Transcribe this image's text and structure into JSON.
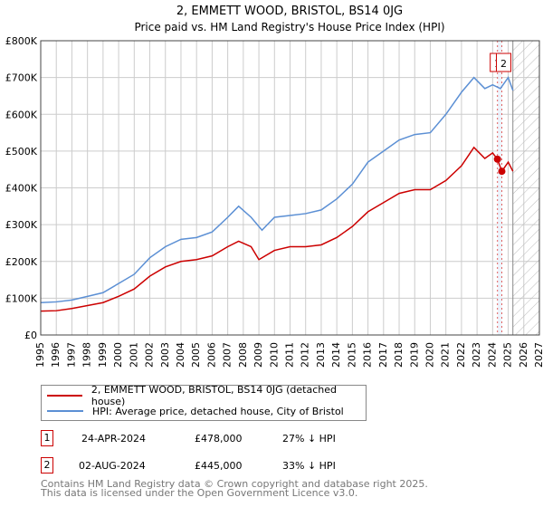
{
  "chart_data": {
    "type": "line",
    "title": "2, EMMETT WOOD, BRISTOL, BS14 0JG",
    "subtitle": "Price paid vs. HM Land Registry's House Price Index (HPI)",
    "xlim": [
      1995,
      2027
    ],
    "ylim": [
      0,
      800000
    ],
    "x_ticks": [
      "1995",
      "1996",
      "1997",
      "1998",
      "1999",
      "2000",
      "2001",
      "2002",
      "2003",
      "2004",
      "2005",
      "2006",
      "2007",
      "2008",
      "2009",
      "2010",
      "2011",
      "2012",
      "2013",
      "2014",
      "2015",
      "2016",
      "2017",
      "2018",
      "2019",
      "2020",
      "2021",
      "2022",
      "2023",
      "2024",
      "2025",
      "2026",
      "2027"
    ],
    "y_ticks": [
      "£0",
      "£100K",
      "£200K",
      "£300K",
      "£400K",
      "£500K",
      "£600K",
      "£700K",
      "£800K"
    ],
    "grid": true,
    "series": [
      {
        "name": "2, EMMETT WOOD, BRISTOL, BS14 0JG (detached house)",
        "color": "#cc0000",
        "x": [
          1995,
          1996,
          1997,
          1998,
          1999,
          2000,
          2001,
          2002,
          2003,
          2004,
          2005,
          2006,
          2007,
          2007.7,
          2008.5,
          2009,
          2010,
          2011,
          2012,
          2013,
          2014,
          2015,
          2016,
          2017,
          2018,
          2019,
          2020,
          2021,
          2022,
          2022.8,
          2023.5,
          2024,
          2024.31,
          2024.59,
          2025,
          2025.3
        ],
        "y": [
          65000,
          66000,
          72000,
          80000,
          88000,
          105000,
          125000,
          160000,
          185000,
          200000,
          205000,
          215000,
          240000,
          255000,
          240000,
          205000,
          230000,
          240000,
          240000,
          245000,
          265000,
          295000,
          335000,
          360000,
          385000,
          395000,
          395000,
          420000,
          460000,
          510000,
          480000,
          495000,
          478000,
          445000,
          470000,
          445000
        ]
      },
      {
        "name": "HPI: Average price, detached house, City of Bristol",
        "color": "#5b8fd4",
        "x": [
          1995,
          1996,
          1997,
          1998,
          1999,
          2000,
          2001,
          2002,
          2003,
          2004,
          2005,
          2006,
          2007,
          2007.7,
          2008.5,
          2009.2,
          2010,
          2011,
          2012,
          2013,
          2014,
          2015,
          2016,
          2017,
          2018,
          2019,
          2020,
          2021,
          2022,
          2022.8,
          2023.5,
          2024,
          2024.5,
          2025,
          2025.3
        ],
        "y": [
          88000,
          90000,
          95000,
          105000,
          115000,
          140000,
          165000,
          210000,
          240000,
          260000,
          265000,
          280000,
          320000,
          350000,
          320000,
          285000,
          320000,
          325000,
          330000,
          340000,
          370000,
          410000,
          470000,
          500000,
          530000,
          545000,
          550000,
          600000,
          660000,
          700000,
          670000,
          680000,
          670000,
          700000,
          665000
        ]
      }
    ],
    "sales": [
      {
        "label": "1",
        "date": "24-APR-2024",
        "x": 2024.31,
        "price": "£478,000",
        "value": 478000,
        "hpi": "27% ↓ HPI"
      },
      {
        "label": "2",
        "date": "02-AUG-2024",
        "x": 2024.59,
        "price": "£445,000",
        "value": 445000,
        "hpi": "33% ↓ HPI"
      }
    ],
    "forecast_from": 2025.3,
    "legend_position": "below"
  },
  "footer": {
    "line1": "Contains HM Land Registry data © Crown copyright and database right 2025.",
    "line2": "This data is licensed under the Open Government Licence v3.0."
  }
}
